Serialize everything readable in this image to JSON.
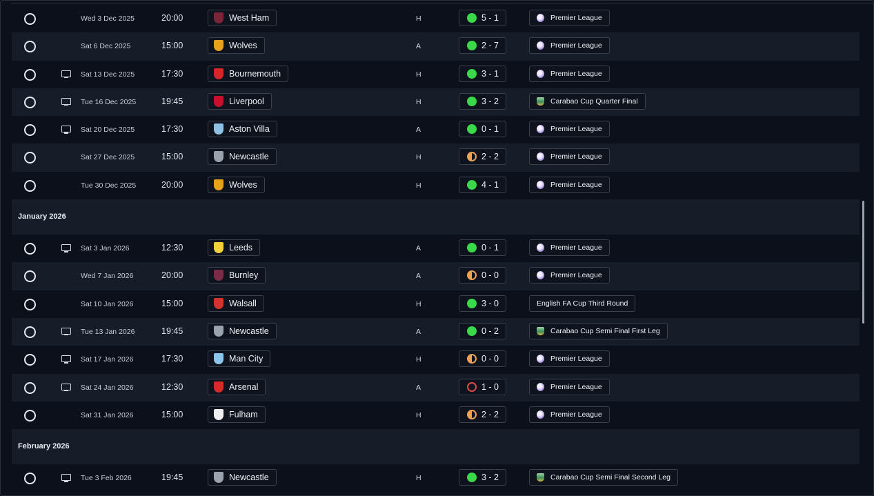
{
  "icons": {
    "select": "radio-circle-icon",
    "tv": "tv-icon",
    "premier_league": "premier-league-logo-icon",
    "carabao_cup": "carabao-cup-logo-icon"
  },
  "colors": {
    "win": "#39d949",
    "draw": "#f0a154",
    "loss": "#e24a4a",
    "row_alt": "#161c28",
    "row": "#0b101b"
  },
  "months": [
    {
      "label": "",
      "fixtures": [
        {
          "tv": false,
          "date": "Wed 3 Dec 2025",
          "time": "20:00",
          "team": "West Ham",
          "crest": "#7a2638",
          "venue": "H",
          "outcome": "win",
          "score": "5 - 1",
          "competition": "Premier League",
          "comp_icon": "pl"
        },
        {
          "tv": false,
          "date": "Sat 6 Dec 2025",
          "time": "15:00",
          "team": "Wolves",
          "crest": "#e6a21a",
          "venue": "A",
          "outcome": "win",
          "score": "2 - 7",
          "competition": "Premier League",
          "comp_icon": "pl"
        },
        {
          "tv": true,
          "date": "Sat 13 Dec 2025",
          "time": "17:30",
          "team": "Bournemouth",
          "crest": "#d6262b",
          "venue": "H",
          "outcome": "win",
          "score": "3 - 1",
          "competition": "Premier League",
          "comp_icon": "pl"
        },
        {
          "tv": true,
          "date": "Tue 16 Dec 2025",
          "time": "19:45",
          "team": "Liverpool",
          "crest": "#c8102e",
          "venue": "H",
          "outcome": "win",
          "score": "3 - 2",
          "competition": "Carabao Cup Quarter Final",
          "comp_icon": "cup"
        },
        {
          "tv": true,
          "date": "Sat 20 Dec 2025",
          "time": "17:30",
          "team": "Aston Villa",
          "crest": "#8fc1e3",
          "venue": "A",
          "outcome": "win",
          "score": "0 - 1",
          "competition": "Premier League",
          "comp_icon": "pl"
        },
        {
          "tv": false,
          "date": "Sat 27 Dec 2025",
          "time": "15:00",
          "team": "Newcastle",
          "crest": "#9aa3ad",
          "venue": "H",
          "outcome": "draw",
          "score": "2 - 2",
          "competition": "Premier League",
          "comp_icon": "pl"
        },
        {
          "tv": false,
          "date": "Tue 30 Dec 2025",
          "time": "20:00",
          "team": "Wolves",
          "crest": "#e6a21a",
          "venue": "H",
          "outcome": "win",
          "score": "4 - 1",
          "competition": "Premier League",
          "comp_icon": "pl"
        }
      ]
    },
    {
      "label": "January 2026",
      "fixtures": [
        {
          "tv": true,
          "date": "Sat 3 Jan 2026",
          "time": "12:30",
          "team": "Leeds",
          "crest": "#f2d23a",
          "venue": "A",
          "outcome": "win",
          "score": "0 - 1",
          "competition": "Premier League",
          "comp_icon": "pl"
        },
        {
          "tv": false,
          "date": "Wed 7 Jan 2026",
          "time": "20:00",
          "team": "Burnley",
          "crest": "#7b2b45",
          "venue": "A",
          "outcome": "draw",
          "score": "0 - 0",
          "competition": "Premier League",
          "comp_icon": "pl"
        },
        {
          "tv": false,
          "date": "Sat 10 Jan 2026",
          "time": "15:00",
          "team": "Walsall",
          "crest": "#d3332f",
          "venue": "H",
          "outcome": "win",
          "score": "3 - 0",
          "competition": "English FA Cup Third Round",
          "comp_icon": ""
        },
        {
          "tv": true,
          "date": "Tue 13 Jan 2026",
          "time": "19:45",
          "team": "Newcastle",
          "crest": "#9aa3ad",
          "venue": "A",
          "outcome": "win",
          "score": "0 - 2",
          "competition": "Carabao Cup Semi Final First Leg",
          "comp_icon": "cup"
        },
        {
          "tv": true,
          "date": "Sat 17 Jan 2026",
          "time": "17:30",
          "team": "Man City",
          "crest": "#8ec5ea",
          "venue": "H",
          "outcome": "draw",
          "score": "0 - 0",
          "competition": "Premier League",
          "comp_icon": "pl"
        },
        {
          "tv": true,
          "date": "Sat 24 Jan 2026",
          "time": "12:30",
          "team": "Arsenal",
          "crest": "#d82a2a",
          "venue": "A",
          "outcome": "loss",
          "score": "1 - 0",
          "competition": "Premier League",
          "comp_icon": "pl"
        },
        {
          "tv": false,
          "date": "Sat 31 Jan 2026",
          "time": "15:00",
          "team": "Fulham",
          "crest": "#eeeeee",
          "venue": "H",
          "outcome": "draw",
          "score": "2 - 2",
          "competition": "Premier League",
          "comp_icon": "pl"
        }
      ]
    },
    {
      "label": "February 2026",
      "fixtures": [
        {
          "tv": true,
          "date": "Tue 3 Feb 2026",
          "time": "19:45",
          "team": "Newcastle",
          "crest": "#9aa3ad",
          "venue": "H",
          "outcome": "win",
          "score": "3 - 2",
          "competition": "Carabao Cup Semi Final Second Leg",
          "comp_icon": "cup"
        }
      ]
    }
  ]
}
